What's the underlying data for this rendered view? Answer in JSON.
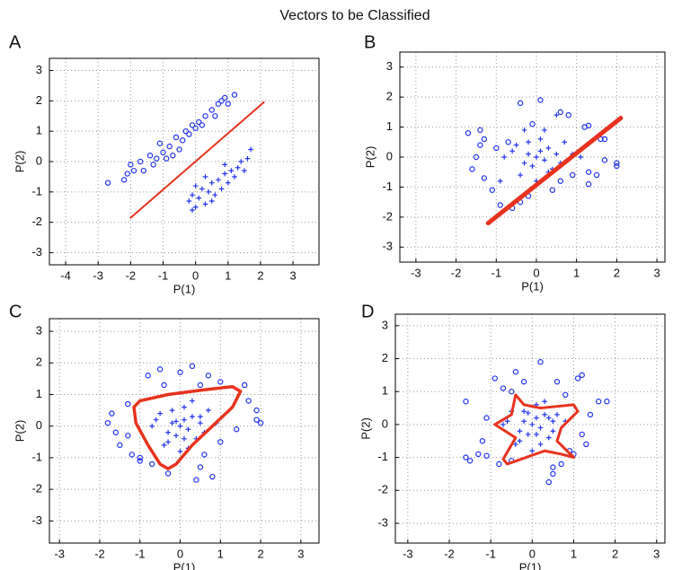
{
  "title": "Vectors to be Classified",
  "chart_data": [
    {
      "type": "scatter",
      "label": "A",
      "x_label": "P(1)",
      "y_label": "P(2)",
      "grid": true,
      "xlim": [
        -4.5,
        3.8
      ],
      "ylim": [
        -3.4,
        3.4
      ],
      "xticks": [
        -4,
        -3,
        -2,
        -1,
        0,
        1,
        2,
        3
      ],
      "yticks": [
        -3,
        -2,
        -1,
        0,
        1,
        2,
        3
      ],
      "series": [
        {
          "marker": "circle",
          "color": "#2233ee",
          "x": [
            -2.7,
            -2.2,
            -2.1,
            -2,
            -1.9,
            -1.7,
            -1.6,
            -1.4,
            -1.3,
            -1.2,
            -1,
            -0.9,
            -0.8,
            -0.7,
            -0.6,
            -0.5,
            -0.4,
            -0.3,
            -0.2,
            -0.1,
            0,
            0.1,
            0.2,
            0.3,
            0.5,
            0.6,
            0.7,
            0.8,
            1,
            1.2,
            0.9,
            -1.1
          ],
          "values": [
            -0.7,
            -0.6,
            -0.4,
            -0.1,
            -0.3,
            0,
            -0.3,
            0.2,
            -0.1,
            0.1,
            0.3,
            0.1,
            0.5,
            0.2,
            0.8,
            0.4,
            0.7,
            1,
            0.9,
            1.2,
            1.1,
            1.3,
            1.2,
            1.5,
            1.7,
            1.5,
            1.9,
            2,
            1.9,
            2.2,
            2.1,
            0.6
          ]
        },
        {
          "marker": "plus",
          "color": "#2233ee",
          "x": [
            -0.2,
            -0.1,
            0,
            0.1,
            0.2,
            0.3,
            0.4,
            0.5,
            0.6,
            0.7,
            0.8,
            0.9,
            1,
            1.1,
            1.2,
            1.3,
            1.4,
            1.5,
            1.6,
            1.7,
            0,
            0.3,
            -0.1,
            0.5,
            0.9
          ],
          "values": [
            -1.3,
            -1.1,
            -1.5,
            -1.2,
            -0.9,
            -1.4,
            -1,
            -0.7,
            -1.1,
            -0.6,
            -0.9,
            -0.4,
            -0.7,
            -0.3,
            -0.5,
            -0.2,
            0,
            -0.3,
            0.1,
            0.4,
            -0.8,
            -0.5,
            -1.6,
            -1.3,
            -0.1
          ]
        },
        {
          "marker": "line",
          "color": "#e8321e",
          "width": 2,
          "x": [
            -2,
            2.1
          ],
          "values": [
            -1.85,
            1.95
          ]
        }
      ]
    },
    {
      "type": "scatter",
      "label": "B",
      "x_label": "P(1)",
      "y_label": "P(2)",
      "grid": true,
      "xlim": [
        -3.4,
        3.2
      ],
      "ylim": [
        -3.5,
        3.5
      ],
      "xticks": [
        -3,
        -2,
        -1,
        0,
        1,
        2,
        3
      ],
      "yticks": [
        -3,
        -2,
        -1,
        0,
        1,
        2,
        3
      ],
      "series": [
        {
          "marker": "circle",
          "color": "#2233ee",
          "x": [
            -0.4,
            0.1,
            0.6,
            0.8,
            1.2,
            1.3,
            1.6,
            1.7,
            2,
            2,
            1.7,
            1.5,
            1.3,
            1.3,
            0.9,
            0.4,
            -0.2,
            -0.4,
            -0.6,
            -0.9,
            -1.1,
            -1.3,
            -1.6,
            -1.5,
            -1.4,
            -1.7,
            -1.4,
            -1.3,
            -1,
            -0.7,
            0.6,
            -0.1
          ],
          "values": [
            1.8,
            1.9,
            1.5,
            1.4,
            1,
            1.05,
            0.6,
            0.6,
            -0.2,
            -0.3,
            -0.1,
            -0.6,
            -0.9,
            -0.5,
            -0.6,
            -1.1,
            -1.3,
            -1.5,
            -1.7,
            -1.6,
            -1.1,
            -0.7,
            -0.4,
            0,
            0.4,
            0.8,
            0.9,
            0.6,
            0.3,
            0.5,
            -0.8,
            1.1
          ]
        },
        {
          "marker": "plus",
          "color": "#2233ee",
          "x": [
            0,
            0.1,
            -0.2,
            0.2,
            -0.1,
            0.3,
            -0.3,
            0.5,
            -0.5,
            0.1,
            -0.4,
            0.4,
            0.7,
            -0.6,
            0.2,
            0.9,
            -0.8,
            0,
            0.6,
            -0.2,
            1.1,
            0.5,
            -0.9,
            0.3,
            -0.3
          ],
          "values": [
            0,
            0.2,
            0.1,
            -0.1,
            -0.3,
            0.3,
            -0.2,
            0.1,
            0.4,
            0.6,
            -0.6,
            -0.4,
            0.5,
            0.2,
            0.9,
            0.1,
            0,
            -0.8,
            -0.2,
            0.5,
            0,
            1.4,
            -0.8,
            -0.5,
            0.9
          ]
        },
        {
          "marker": "line",
          "color": "#e8321e",
          "width": 5,
          "x": [
            -1.2,
            2.1
          ],
          "values": [
            -2.2,
            1.3
          ]
        }
      ]
    },
    {
      "type": "scatter",
      "label": "C",
      "x_label": "P(1)",
      "y_label": "P(2)",
      "grid": true,
      "xlim": [
        -3.25,
        3.45
      ],
      "ylim": [
        -3.7,
        3.4
      ],
      "xticks": [
        -3,
        -2,
        -1,
        0,
        1,
        2,
        3
      ],
      "yticks": [
        -3,
        -2,
        -1,
        0,
        1,
        2,
        3
      ],
      "series": [
        {
          "marker": "circle",
          "color": "#2233ee",
          "x": [
            -0.8,
            -0.5,
            0,
            0.3,
            0.7,
            1,
            1.6,
            1.7,
            1.9,
            2,
            1.9,
            1.4,
            1,
            0.6,
            0.5,
            0.8,
            0.4,
            -0.3,
            -0.7,
            -1,
            -1.5,
            -1.6,
            -1.8,
            -1.7,
            -1.3,
            -1.3,
            -1.2,
            -0.4,
            0.5,
            -1
          ],
          "values": [
            1.6,
            1.8,
            1.7,
            1.9,
            1.6,
            1.4,
            1.3,
            0.8,
            0.5,
            0.1,
            0.2,
            -0.1,
            -0.5,
            -0.9,
            -1.3,
            -1.6,
            -1.7,
            -1.5,
            -1.2,
            -1,
            -0.6,
            -0.2,
            0.1,
            0.4,
            0.7,
            -0.3,
            -0.9,
            1.3,
            1.3,
            -1.1
          ]
        },
        {
          "marker": "plus",
          "color": "#2233ee",
          "x": [
            0,
            0.1,
            -0.2,
            0.2,
            -0.1,
            0.3,
            -0.3,
            0.5,
            -0.5,
            0.1,
            -0.4,
            0.4,
            0.7,
            -0.6,
            0.2,
            0.9,
            -0.7,
            0,
            0.6,
            -0.2,
            0.3,
            -0.3,
            0.1,
            0.5,
            -0.1
          ],
          "values": [
            0,
            0.2,
            0.1,
            -0.1,
            -0.3,
            0.3,
            -0.2,
            0.1,
            0.4,
            0.6,
            -0.6,
            -0.4,
            0.5,
            0.2,
            -0.7,
            0.1,
            0,
            -0.8,
            -0.2,
            0.5,
            0.8,
            -0.5,
            -0.4,
            0.3,
            0.15
          ]
        },
        {
          "marker": "line",
          "color": "#e8321e",
          "width": 3.5,
          "x": [
            -1,
            -0.3,
            0.6,
            1.3,
            1.5,
            1.3,
            0.8,
            0.3,
            -0.1,
            -0.3,
            -0.5,
            -0.8,
            -1.1,
            -1.15,
            -1
          ],
          "values": [
            0.8,
            1,
            1.15,
            1.25,
            1.1,
            0.6,
            0,
            -0.6,
            -1.2,
            -1.35,
            -1.2,
            -0.6,
            0.1,
            0.6,
            0.8
          ]
        }
      ]
    },
    {
      "type": "scatter",
      "label": "D",
      "x_label": "P(1)",
      "y_label": "P(2)",
      "grid": true,
      "xlim": [
        -3.3,
        3.2
      ],
      "ylim": [
        -3.6,
        3.35
      ],
      "xticks": [
        -3,
        -2,
        -1,
        0,
        1,
        2,
        3
      ],
      "yticks": [
        -3,
        -2,
        -1,
        0,
        1,
        2,
        3
      ],
      "series": [
        {
          "marker": "circle",
          "color": "#2233ee",
          "x": [
            -0.9,
            -0.4,
            -0.2,
            0.2,
            0.6,
            1.1,
            1.2,
            1.6,
            1.8,
            1.4,
            1.2,
            1.3,
            0.9,
            0.7,
            0.5,
            0.4,
            -0.5,
            -0.8,
            -1.1,
            -1.3,
            -1.5,
            -1.6,
            -1.6,
            -1.1,
            -0.7,
            -0.5,
            0.8,
            0.5,
            -1.2,
            1.0
          ],
          "values": [
            1.4,
            1.6,
            1.3,
            1.9,
            1.3,
            1.4,
            1.5,
            0.7,
            0.7,
            0.3,
            -0.3,
            -0.6,
            -0.8,
            -1.2,
            -1.5,
            -1.75,
            -1.1,
            -1.2,
            -0.95,
            -0.9,
            -1.1,
            -1,
            0.7,
            0.2,
            1.1,
            1,
            0.9,
            -1.3,
            -0.5,
            -0.9
          ]
        },
        {
          "marker": "plus",
          "color": "#2233ee",
          "x": [
            0,
            0.1,
            -0.2,
            0.2,
            -0.1,
            0.3,
            -0.3,
            0.5,
            -0.5,
            0.1,
            -0.4,
            0.4,
            0.6,
            -0.6,
            0.2,
            0.8,
            -0.7,
            0,
            0.5,
            -0.2,
            0.3,
            -0.3,
            0.1,
            -0.1,
            0.4
          ],
          "values": [
            0,
            0.2,
            0.1,
            -0.1,
            -0.3,
            0.3,
            -0.2,
            0.1,
            0.4,
            0.6,
            -0.6,
            -0.4,
            0.3,
            0.1,
            -0.6,
            0.1,
            0,
            -0.8,
            -0.2,
            0.4,
            0.7,
            -0.5,
            -0.3,
            0.35,
            0.2
          ]
        },
        {
          "marker": "line",
          "color": "#e8321e",
          "width": 3,
          "x": [
            -0.9,
            -0.5,
            -0.4,
            -0.2,
            0.2,
            1,
            1.1,
            0.7,
            0.6,
            1,
            0.7,
            0.3,
            -0.6,
            -0.7,
            -0.4,
            -0.9
          ],
          "values": [
            0,
            0.3,
            0.9,
            0.6,
            0.5,
            0.6,
            0.4,
            -0.1,
            -0.5,
            -1,
            -0.9,
            -0.8,
            -1.2,
            -1.05,
            -0.4,
            0
          ]
        }
      ]
    }
  ]
}
